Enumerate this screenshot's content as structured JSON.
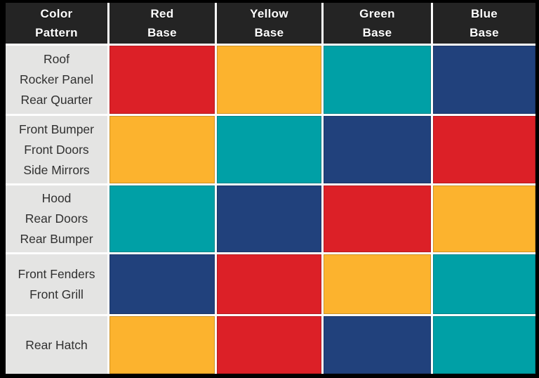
{
  "table": {
    "header": [
      {
        "line1": "Color",
        "line2": "Pattern"
      },
      {
        "line1": "Red",
        "line2": "Base"
      },
      {
        "line1": "Yellow",
        "line2": "Base"
      },
      {
        "line1": "Green",
        "line2": "Base"
      },
      {
        "line1": "Blue",
        "line2": "Base"
      }
    ],
    "colors": {
      "red": "#dc2027",
      "yellow": "#fcb32e",
      "teal": "#00a0a6",
      "navy": "#21417c"
    },
    "rows": [
      {
        "lines": [
          "Roof",
          "Rocker Panel",
          "Rear Quarter"
        ],
        "cells": [
          "red",
          "yellow",
          "teal",
          "navy"
        ]
      },
      {
        "lines": [
          "Front Bumper",
          "Front Doors",
          "Side Mirrors"
        ],
        "cells": [
          "yellow",
          "teal",
          "navy",
          "red"
        ]
      },
      {
        "lines": [
          "Hood",
          "Rear Doors",
          "Rear Bumper"
        ],
        "cells": [
          "teal",
          "navy",
          "red",
          "yellow"
        ]
      },
      {
        "lines": [
          "Front Fenders",
          "Front Grill"
        ],
        "cells": [
          "navy",
          "red",
          "yellow",
          "teal"
        ]
      },
      {
        "lines": [
          "Rear Hatch"
        ],
        "cells": [
          "yellow",
          "red",
          "navy",
          "teal"
        ]
      }
    ]
  },
  "chart_data": {
    "type": "table",
    "columns": [
      "Color Pattern",
      "Red Base",
      "Yellow Base",
      "Green Base",
      "Blue Base"
    ],
    "rows": [
      [
        "Roof, Rocker Panel, Rear Quarter",
        "red",
        "yellow",
        "teal",
        "navy"
      ],
      [
        "Front Bumper, Front Doors, Side Mirrors",
        "yellow",
        "teal",
        "navy",
        "red"
      ],
      [
        "Hood, Rear Doors, Rear Bumper",
        "teal",
        "navy",
        "red",
        "yellow"
      ],
      [
        "Front Fenders, Front Grill",
        "navy",
        "red",
        "yellow",
        "teal"
      ],
      [
        "Rear Hatch",
        "yellow",
        "red",
        "navy",
        "teal"
      ]
    ],
    "cell_colors": {
      "red": "#dc2027",
      "yellow": "#fcb32e",
      "teal": "#00a0a6",
      "navy": "#21417c"
    }
  }
}
